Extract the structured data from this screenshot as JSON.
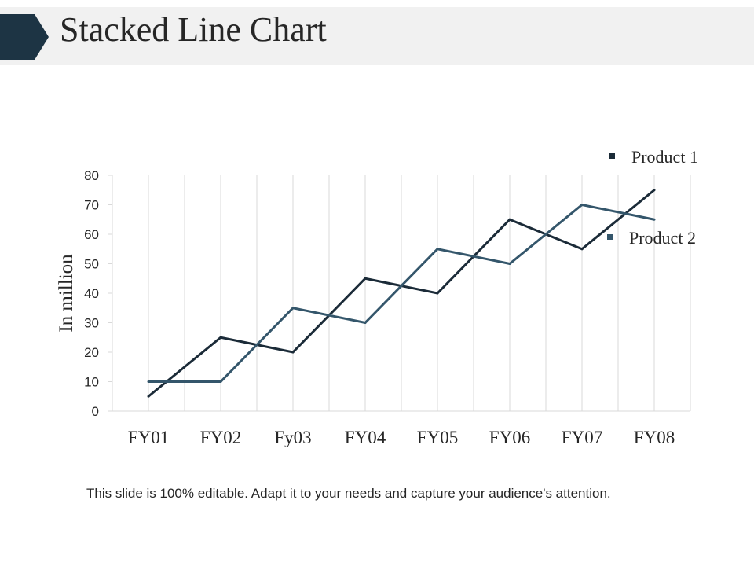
{
  "slide": {
    "title": "Stacked Line Chart",
    "footer": "This slide is 100% editable. Adapt it to your needs and capture your audience's attention."
  },
  "colors": {
    "title_band": "#f1f1f1",
    "title_arrow": "#1d3444",
    "series": [
      "#1b2b38",
      "#34566b"
    ],
    "grid": "#d9d9d9"
  },
  "chart_data": {
    "type": "line",
    "title": "",
    "xlabel": "",
    "ylabel": "In million",
    "categories": [
      "FY01",
      "FY02",
      "Fy03",
      "FY04",
      "FY05",
      "FY06",
      "FY07",
      "FY08"
    ],
    "yticks": [
      0,
      10,
      20,
      30,
      40,
      50,
      60,
      70,
      80
    ],
    "ylim": [
      0,
      80
    ],
    "grid": "vertical",
    "legend_position": "right",
    "series": [
      {
        "name": "Product 1",
        "values": [
          5,
          25,
          20,
          45,
          40,
          65,
          55,
          75
        ]
      },
      {
        "name": "Product 2",
        "values": [
          10,
          10,
          35,
          30,
          55,
          50,
          70,
          65
        ]
      }
    ]
  }
}
